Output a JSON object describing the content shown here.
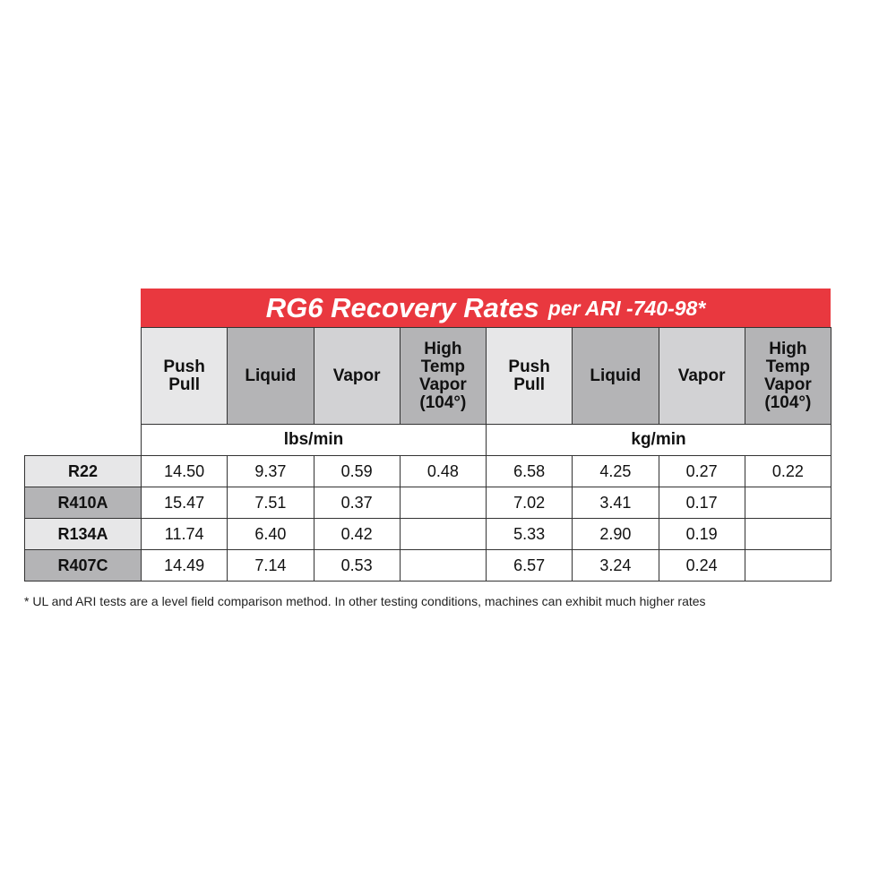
{
  "table": {
    "title": {
      "main": "RG6 Recovery Rates",
      "sub": "per ARI -740-98*"
    },
    "headers": [
      {
        "lines": [
          "Push",
          "Pull"
        ]
      },
      {
        "lines": [
          "Liquid"
        ]
      },
      {
        "lines": [
          "Vapor"
        ]
      },
      {
        "lines": [
          "High",
          "Temp",
          "Vapor",
          "(104°)"
        ]
      },
      {
        "lines": [
          "Push",
          "Pull"
        ]
      },
      {
        "lines": [
          "Liquid"
        ]
      },
      {
        "lines": [
          "Vapor"
        ]
      },
      {
        "lines": [
          "High",
          "Temp",
          "Vapor",
          "(104°)"
        ]
      }
    ],
    "units": [
      "lbs/min",
      "kg/min"
    ],
    "rows": [
      {
        "label": "R22",
        "cells": [
          "14.50",
          "9.37",
          "0.59",
          "0.48",
          "6.58",
          "4.25",
          "0.27",
          "0.22"
        ]
      },
      {
        "label": "R410A",
        "cells": [
          "15.47",
          "7.51",
          "0.37",
          null,
          "7.02",
          "3.41",
          "0.17",
          null
        ]
      },
      {
        "label": "R134A",
        "cells": [
          "11.74",
          "6.40",
          "0.42",
          null,
          "5.33",
          "2.90",
          "0.19",
          null
        ]
      },
      {
        "label": "R407C",
        "cells": [
          "14.49",
          "7.14",
          "0.53",
          null,
          "6.57",
          "3.24",
          "0.24",
          null
        ]
      }
    ],
    "footnote": "* UL and ARI tests are a level field comparison method. In other testing conditions, machines can exhibit much higher rates"
  }
}
